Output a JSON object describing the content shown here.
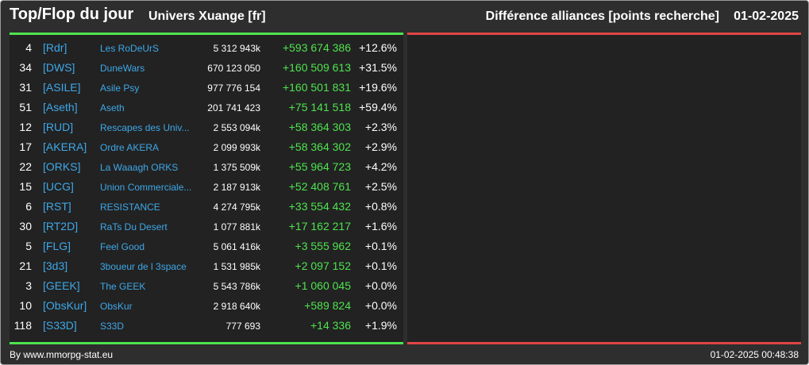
{
  "header": {
    "title": "Top/Flop du jour",
    "subtitle": "Univers Xuange [fr]",
    "right_title": "Différence alliances [points recherche]",
    "date": "01-02-2025"
  },
  "colors": {
    "green": "#4ee34e",
    "red": "#e04545",
    "link": "#3ea8e8"
  },
  "rows": [
    {
      "rank": "4",
      "tag": "[Rdr]",
      "name": "Les RoDeUrS",
      "points": "5 312 943k",
      "diff": "+593 674 386",
      "pct": "+12.6%"
    },
    {
      "rank": "34",
      "tag": "[DWS]",
      "name": "DuneWars",
      "points": "670 123 050",
      "diff": "+160 509 613",
      "pct": "+31.5%"
    },
    {
      "rank": "31",
      "tag": "[ASILE]",
      "name": "Asile Psy",
      "points": "977 776 154",
      "diff": "+160 501 831",
      "pct": "+19.6%"
    },
    {
      "rank": "51",
      "tag": "[Aseth]",
      "name": "Aseth",
      "points": "201 741 423",
      "diff": "+75 141 518",
      "pct": "+59.4%"
    },
    {
      "rank": "12",
      "tag": "[RUD]",
      "name": "Rescapes des Univ...",
      "points": "2 553 094k",
      "diff": "+58 364 303",
      "pct": "+2.3%"
    },
    {
      "rank": "17",
      "tag": "[AKERA]",
      "name": "Ordre AKERA",
      "points": "2 099 993k",
      "diff": "+58 364 302",
      "pct": "+2.9%"
    },
    {
      "rank": "22",
      "tag": "[ORKS]",
      "name": "La Waaagh ORKS",
      "points": "1 375 509k",
      "diff": "+55 964 723",
      "pct": "+4.2%"
    },
    {
      "rank": "15",
      "tag": "[UCG]",
      "name": "Union Commerciale...",
      "points": "2 187 913k",
      "diff": "+52 408 761",
      "pct": "+2.5%"
    },
    {
      "rank": "6",
      "tag": "[RST]",
      "name": "RESISTANCE",
      "points": "4 274 795k",
      "diff": "+33 554 432",
      "pct": "+0.8%"
    },
    {
      "rank": "30",
      "tag": "[RT2D]",
      "name": "RaTs Du Desert",
      "points": "1 077 881k",
      "diff": "+17 162 217",
      "pct": "+1.6%"
    },
    {
      "rank": "5",
      "tag": "[FLG]",
      "name": "Feel Good",
      "points": "5 061 416k",
      "diff": "+3 555 962",
      "pct": "+0.1%"
    },
    {
      "rank": "21",
      "tag": "[3d3]",
      "name": "3boueur de l 3space",
      "points": "1 531 985k",
      "diff": "+2 097 152",
      "pct": "+0.1%"
    },
    {
      "rank": "3",
      "tag": "[GEEK]",
      "name": "The GEEK",
      "points": "5 543 786k",
      "diff": "+1 060 045",
      "pct": "+0.0%"
    },
    {
      "rank": "10",
      "tag": "[ObsKur]",
      "name": "ObsKur",
      "points": "2 918 640k",
      "diff": "+589 824",
      "pct": "+0.0%"
    },
    {
      "rank": "118",
      "tag": "[S33D]",
      "name": "S33D",
      "points": "777 693",
      "diff": "+14 336",
      "pct": "+1.9%"
    }
  ],
  "footer": {
    "credit": "By www.mmorpg-stat.eu",
    "timestamp": "01-02-2025 00:48:38"
  }
}
